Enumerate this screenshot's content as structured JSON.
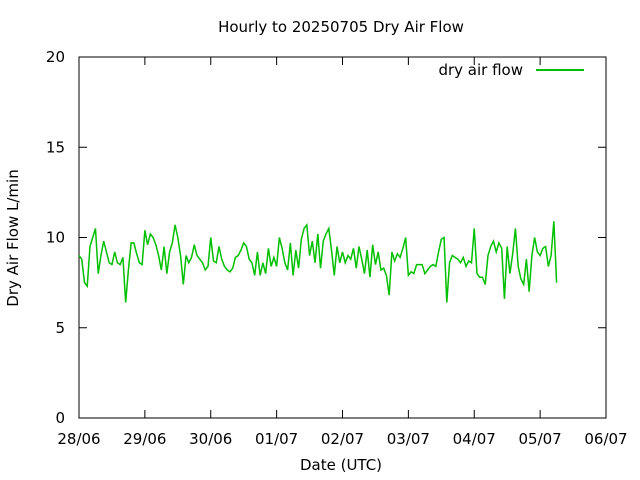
{
  "chart_data": {
    "type": "line",
    "title": "Hourly to 20250705 Dry Air Flow",
    "x_label": "Date (UTC)",
    "y_label": "Dry Air Flow L/min",
    "legend": "top-right",
    "xlim": [
      0,
      192
    ],
    "xticks": [
      {
        "value": 0,
        "label": "28/06"
      },
      {
        "value": 24,
        "label": "29/06"
      },
      {
        "value": 48,
        "label": "30/06"
      },
      {
        "value": 72,
        "label": "01/07"
      },
      {
        "value": 96,
        "label": "02/07"
      },
      {
        "value": 120,
        "label": "03/07"
      },
      {
        "value": 144,
        "label": "04/07"
      },
      {
        "value": 168,
        "label": "05/07"
      },
      {
        "value": 192,
        "label": "06/07"
      }
    ],
    "ylim": [
      0,
      20
    ],
    "yticks": [
      0,
      5,
      10,
      15,
      20
    ],
    "x": [
      0,
      1,
      2,
      3,
      4,
      5,
      6,
      7,
      8,
      9,
      10,
      11,
      12,
      13,
      14,
      15,
      16,
      17,
      18,
      19,
      20,
      21,
      22,
      23,
      24,
      25,
      26,
      27,
      28,
      29,
      30,
      31,
      32,
      33,
      34,
      35,
      36,
      37,
      38,
      39,
      40,
      41,
      42,
      43,
      44,
      45,
      46,
      47,
      48,
      49,
      50,
      51,
      52,
      53,
      54,
      55,
      56,
      57,
      58,
      59,
      60,
      61,
      62,
      63,
      64,
      65,
      66,
      67,
      68,
      69,
      70,
      71,
      72,
      73,
      74,
      75,
      76,
      77,
      78,
      79,
      80,
      81,
      82,
      83,
      84,
      85,
      86,
      87,
      88,
      89,
      90,
      91,
      92,
      93,
      94,
      95,
      96,
      97,
      98,
      99,
      100,
      101,
      102,
      103,
      104,
      105,
      106,
      107,
      108,
      109,
      110,
      111,
      112,
      113,
      114,
      115,
      116,
      117,
      118,
      119,
      120,
      121,
      122,
      123,
      124,
      125,
      126,
      127,
      128,
      129,
      130,
      131,
      132,
      133,
      134,
      135,
      136,
      137,
      138,
      139,
      140,
      141,
      142,
      143,
      144,
      145,
      146,
      147,
      148,
      149,
      150,
      151,
      152,
      153,
      154,
      155,
      156,
      157,
      158,
      159,
      160,
      161,
      162,
      163,
      164,
      165,
      166,
      167,
      168,
      169,
      170,
      171,
      172,
      173,
      174
    ],
    "series": [
      {
        "name": "dry air flow",
        "color": "#00c000",
        "values": [
          9.0,
          8.8,
          7.5,
          7.3,
          9.5,
          10.0,
          10.5,
          8.0,
          9.0,
          9.8,
          9.2,
          8.6,
          8.5,
          9.2,
          8.6,
          8.5,
          8.9,
          6.4,
          8.2,
          9.7,
          9.7,
          9.1,
          8.6,
          8.5,
          10.4,
          9.6,
          10.2,
          10.0,
          9.6,
          9.0,
          8.2,
          9.5,
          8.0,
          9.2,
          9.7,
          10.7,
          10.0,
          9.0,
          7.4,
          9.0,
          8.6,
          8.9,
          9.6,
          9.0,
          8.8,
          8.6,
          8.2,
          8.4,
          10.0,
          8.7,
          8.6,
          9.5,
          8.8,
          8.4,
          8.2,
          8.1,
          8.3,
          8.9,
          9.0,
          9.3,
          9.7,
          9.5,
          8.8,
          8.6,
          7.9,
          9.2,
          7.9,
          8.6,
          8.0,
          9.4,
          8.4,
          8.9,
          8.4,
          10.0,
          9.4,
          8.6,
          8.2,
          9.7,
          7.9,
          9.3,
          8.3,
          9.9,
          10.5,
          10.7,
          9.0,
          9.8,
          8.6,
          10.2,
          8.3,
          9.8,
          10.2,
          10.5,
          9.3,
          7.9,
          9.5,
          8.6,
          9.2,
          8.6,
          9.0,
          8.8,
          9.4,
          8.3,
          9.5,
          8.8,
          8.0,
          9.3,
          7.8,
          9.6,
          8.5,
          9.2,
          8.2,
          8.3,
          7.9,
          6.8,
          9.2,
          8.7,
          9.1,
          8.9,
          9.4,
          10.0,
          7.9,
          8.1,
          8.0,
          8.5,
          8.5,
          8.5,
          8.0,
          8.2,
          8.4,
          8.5,
          8.4,
          9.2,
          9.9,
          10.0,
          6.4,
          8.6,
          9.0,
          8.9,
          8.8,
          8.6,
          8.9,
          8.4,
          8.7,
          8.6,
          10.5,
          8.0,
          7.8,
          7.8,
          7.4,
          9.0,
          9.5,
          9.8,
          9.2,
          9.7,
          9.4,
          6.6,
          9.5,
          8.0,
          9.1,
          10.5,
          8.4,
          7.7,
          7.4,
          8.8,
          7.0,
          9.0,
          10.0,
          9.2,
          9.0,
          9.4,
          9.5,
          8.4,
          9.0,
          10.9,
          7.5
        ]
      }
    ]
  }
}
